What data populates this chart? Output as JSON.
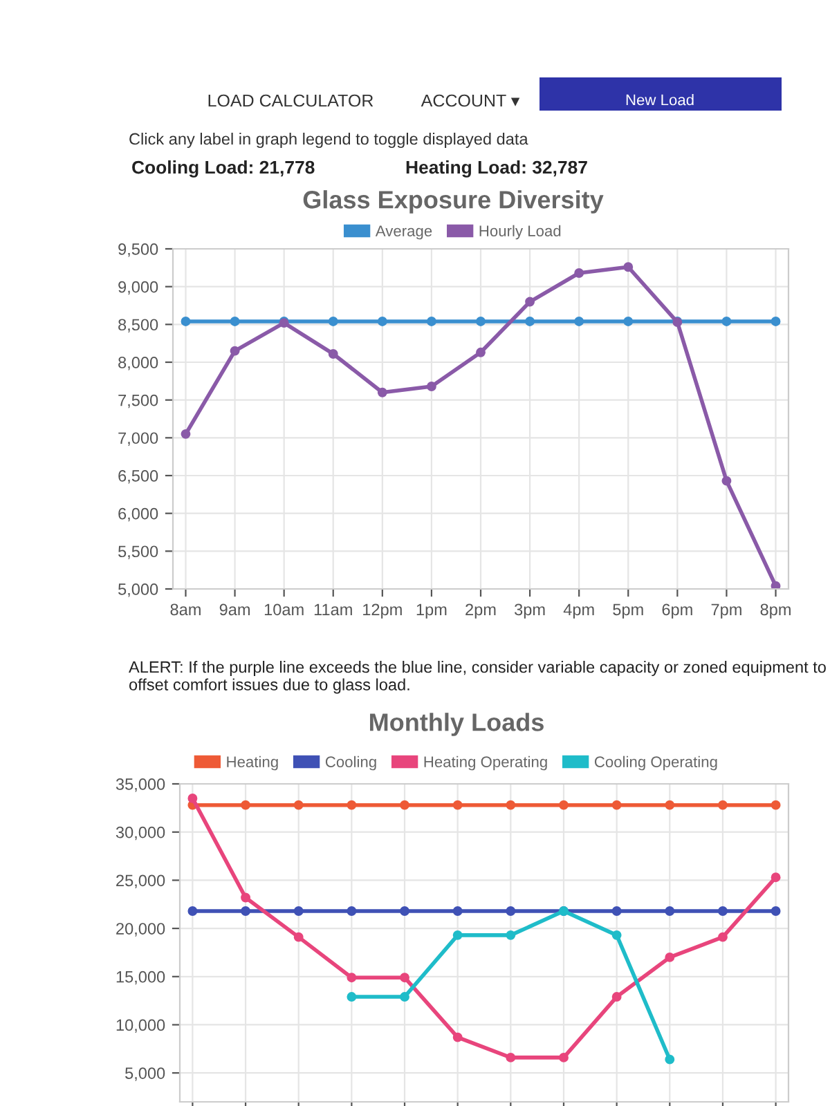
{
  "chart_data": [
    {
      "type": "line",
      "title": "Glass Exposure Diversity",
      "categories": [
        "8am",
        "9am",
        "10am",
        "11am",
        "12pm",
        "1pm",
        "2pm",
        "3pm",
        "4pm",
        "5pm",
        "6pm",
        "7pm",
        "8pm"
      ],
      "series": [
        {
          "name": "Average",
          "color": "#3a8fcf",
          "values": [
            8540,
            8540,
            8540,
            8540,
            8540,
            8540,
            8540,
            8540,
            8540,
            8540,
            8540,
            8540,
            8540
          ]
        },
        {
          "name": "Hourly Load",
          "color": "#8a5aa8",
          "values": [
            7050,
            8150,
            8520,
            8110,
            7600,
            7680,
            8130,
            8800,
            9180,
            9260,
            8530,
            6430,
            5040
          ]
        }
      ],
      "ylim": [
        5000,
        9500
      ],
      "yticks": [
        {
          "value": 5000,
          "label": "5,000"
        },
        {
          "value": 5500,
          "label": "5,500"
        },
        {
          "value": 6000,
          "label": "6,000"
        },
        {
          "value": 6500,
          "label": "6,500"
        },
        {
          "value": 7000,
          "label": "7,000"
        },
        {
          "value": 7500,
          "label": "7,500"
        },
        {
          "value": 8000,
          "label": "8,000"
        },
        {
          "value": 8500,
          "label": "8,500"
        },
        {
          "value": 9000,
          "label": "9,000"
        },
        {
          "value": 9500,
          "label": "9,500"
        }
      ],
      "grid": true,
      "legend": "top",
      "marker": "circle",
      "line_style": "solid",
      "annotations": [
        "LOAD CALCULATOR",
        "ACCOUNT ▾",
        "New Load",
        "Click any label in graph legend to toggle displayed data",
        "Cooling Load: 21,778",
        "Heating Load: 32,787",
        "ALERT: If the purple line exceeds the blue line, consider variable capacity or zoned equipment to offset comfort issues due to glass load."
      ]
    },
    {
      "type": "line",
      "title": "Monthly Loads",
      "categories": [
        null,
        null,
        null,
        null,
        null,
        null,
        null,
        null,
        null,
        null,
        null,
        null
      ],
      "series": [
        {
          "name": "Heating",
          "color": "#ee5a36",
          "values": [
            32800,
            32800,
            32800,
            32800,
            32800,
            32800,
            32800,
            32800,
            32800,
            32800,
            32800,
            32800
          ]
        },
        {
          "name": "Cooling",
          "color": "#3f51b5",
          "values": [
            21800,
            21800,
            21800,
            21800,
            21800,
            21800,
            21800,
            21800,
            21800,
            21800,
            21800,
            21800
          ]
        },
        {
          "name": "Heating Operating",
          "color": "#e8457c",
          "values": [
            33500,
            23200,
            19100,
            14900,
            14900,
            8700,
            6600,
            6600,
            12900,
            17000,
            19100,
            25300
          ]
        },
        {
          "name": "Cooling Operating",
          "color": "#1fbcc9",
          "values": [
            null,
            null,
            null,
            12900,
            12900,
            19300,
            19300,
            21800,
            19300,
            6400,
            null,
            null
          ]
        }
      ],
      "ylim": [
        2000,
        35000
      ],
      "yticks": [
        {
          "value": 5000,
          "label": "5,000"
        },
        {
          "value": 10000,
          "label": "10,000"
        },
        {
          "value": 15000,
          "label": "15,000"
        },
        {
          "value": 20000,
          "label": "20,000"
        },
        {
          "value": 25000,
          "label": "25,000"
        },
        {
          "value": 30000,
          "label": "30,000"
        },
        {
          "value": 35000,
          "label": "35,000"
        }
      ],
      "grid": true,
      "legend": "top",
      "marker": "circle",
      "line_style": "solid",
      "tick_labels": "y"
    }
  ]
}
